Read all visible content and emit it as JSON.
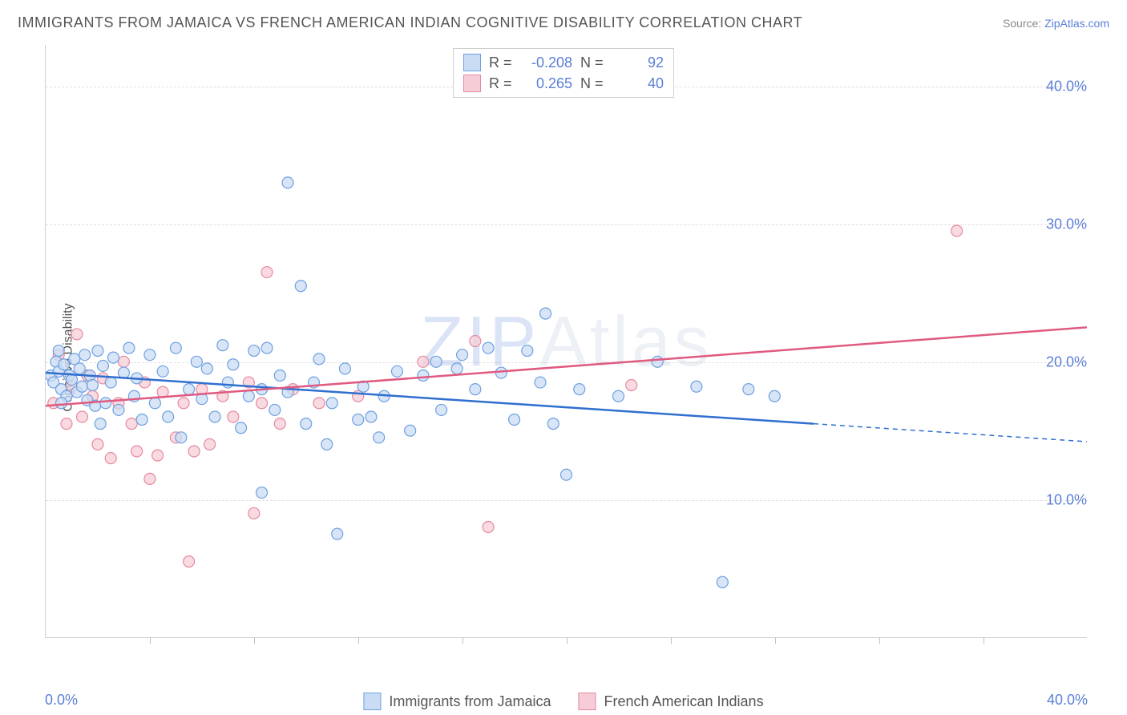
{
  "title": "IMMIGRANTS FROM JAMAICA VS FRENCH AMERICAN INDIAN COGNITIVE DISABILITY CORRELATION CHART",
  "source_prefix": "Source: ",
  "source_link": "ZipAtlas.com",
  "ylabel": "Cognitive Disability",
  "watermark_prefix": "ZIP",
  "watermark_rest": "Atlas",
  "chart": {
    "type": "scatter",
    "xlim": [
      0,
      40
    ],
    "ylim": [
      0,
      43
    ],
    "xtick_labels": {
      "0": "0.0%",
      "40": "40.0%"
    },
    "xticks_minor": [
      4,
      8,
      12,
      16,
      20,
      24,
      28,
      32,
      36
    ],
    "yticks": [
      10,
      20,
      30,
      40
    ],
    "ytick_labels": {
      "10": "10.0%",
      "20": "20.0%",
      "30": "30.0%",
      "40": "40.0%"
    },
    "background_color": "#ffffff",
    "grid_color": "#e0e0e0",
    "axis_color": "#d0d0d0",
    "marker_radius": 7,
    "marker_stroke_width": 1.2,
    "trend_line_width": 2.5,
    "series": [
      {
        "name": "Immigrants from Jamaica",
        "fill": "#c9dcf4",
        "stroke": "#6fa0e0",
        "fill_opacity": 0.75,
        "R": "-0.208",
        "N": "92",
        "trend": {
          "color": "#2f6fd0",
          "x1": 0,
          "y1": 19.2,
          "x2": 29.5,
          "y2": 15.5,
          "dash_from_x": 29.5,
          "x3": 40,
          "y3": 14.2
        },
        "points": [
          [
            0.2,
            19.0
          ],
          [
            0.3,
            18.5
          ],
          [
            0.4,
            20.0
          ],
          [
            0.5,
            19.3
          ],
          [
            0.6,
            18.0
          ],
          [
            0.7,
            19.8
          ],
          [
            0.8,
            17.5
          ],
          [
            0.9,
            19.0
          ],
          [
            0.5,
            20.8
          ],
          [
            0.6,
            17.0
          ],
          [
            1.0,
            18.7
          ],
          [
            1.1,
            20.2
          ],
          [
            1.2,
            17.8
          ],
          [
            1.3,
            19.5
          ],
          [
            1.4,
            18.2
          ],
          [
            1.5,
            20.5
          ],
          [
            1.6,
            17.2
          ],
          [
            1.7,
            19.0
          ],
          [
            1.8,
            18.3
          ],
          [
            1.9,
            16.8
          ],
          [
            2.0,
            20.8
          ],
          [
            2.1,
            15.5
          ],
          [
            2.2,
            19.7
          ],
          [
            2.3,
            17.0
          ],
          [
            2.5,
            18.5
          ],
          [
            2.6,
            20.3
          ],
          [
            2.8,
            16.5
          ],
          [
            3.0,
            19.2
          ],
          [
            3.2,
            21.0
          ],
          [
            3.4,
            17.5
          ],
          [
            3.5,
            18.8
          ],
          [
            3.7,
            15.8
          ],
          [
            4.0,
            20.5
          ],
          [
            4.2,
            17.0
          ],
          [
            4.5,
            19.3
          ],
          [
            4.7,
            16.0
          ],
          [
            5.0,
            21.0
          ],
          [
            5.2,
            14.5
          ],
          [
            5.5,
            18.0
          ],
          [
            5.8,
            20.0
          ],
          [
            6.0,
            17.3
          ],
          [
            6.2,
            19.5
          ],
          [
            6.5,
            16.0
          ],
          [
            6.8,
            21.2
          ],
          [
            7.0,
            18.5
          ],
          [
            7.2,
            19.8
          ],
          [
            7.5,
            15.2
          ],
          [
            7.8,
            17.5
          ],
          [
            8.0,
            20.8
          ],
          [
            8.3,
            18.0
          ],
          [
            8.3,
            10.5
          ],
          [
            8.5,
            21.0
          ],
          [
            8.8,
            16.5
          ],
          [
            9.0,
            19.0
          ],
          [
            9.3,
            17.8
          ],
          [
            9.3,
            33.0
          ],
          [
            9.8,
            25.5
          ],
          [
            10.0,
            15.5
          ],
          [
            10.3,
            18.5
          ],
          [
            10.5,
            20.2
          ],
          [
            10.8,
            14.0
          ],
          [
            11.0,
            17.0
          ],
          [
            11.2,
            7.5
          ],
          [
            11.5,
            19.5
          ],
          [
            12.0,
            15.8
          ],
          [
            12.2,
            18.2
          ],
          [
            12.5,
            16.0
          ],
          [
            12.8,
            14.5
          ],
          [
            13.0,
            17.5
          ],
          [
            13.5,
            19.3
          ],
          [
            14.0,
            15.0
          ],
          [
            14.5,
            19.0
          ],
          [
            15.0,
            20.0
          ],
          [
            15.2,
            16.5
          ],
          [
            15.8,
            19.5
          ],
          [
            16.0,
            20.5
          ],
          [
            16.5,
            18.0
          ],
          [
            17.0,
            21.0
          ],
          [
            17.5,
            19.2
          ],
          [
            18.0,
            15.8
          ],
          [
            18.5,
            20.8
          ],
          [
            19.0,
            18.5
          ],
          [
            19.2,
            23.5
          ],
          [
            19.5,
            15.5
          ],
          [
            20.0,
            11.8
          ],
          [
            20.5,
            18.0
          ],
          [
            22.0,
            17.5
          ],
          [
            23.5,
            20.0
          ],
          [
            25.0,
            18.2
          ],
          [
            26.0,
            4.0
          ],
          [
            27.0,
            18.0
          ],
          [
            28.0,
            17.5
          ]
        ]
      },
      {
        "name": "French American Indians",
        "fill": "#f6cdd6",
        "stroke": "#e68aa0",
        "fill_opacity": 0.75,
        "R": "0.265",
        "N": "40",
        "trend": {
          "color": "#e05a80",
          "x1": 0,
          "y1": 16.8,
          "x2": 40,
          "y2": 22.5
        },
        "points": [
          [
            0.3,
            17.0
          ],
          [
            0.5,
            20.5
          ],
          [
            0.8,
            15.5
          ],
          [
            1.0,
            18.2
          ],
          [
            1.2,
            22.0
          ],
          [
            1.4,
            16.0
          ],
          [
            1.6,
            19.0
          ],
          [
            1.8,
            17.5
          ],
          [
            2.0,
            14.0
          ],
          [
            2.2,
            18.8
          ],
          [
            2.5,
            13.0
          ],
          [
            2.8,
            17.0
          ],
          [
            3.0,
            20.0
          ],
          [
            3.3,
            15.5
          ],
          [
            3.5,
            13.5
          ],
          [
            3.8,
            18.5
          ],
          [
            4.0,
            11.5
          ],
          [
            4.3,
            13.2
          ],
          [
            4.5,
            17.8
          ],
          [
            5.0,
            14.5
          ],
          [
            5.3,
            17.0
          ],
          [
            5.5,
            5.5
          ],
          [
            5.7,
            13.5
          ],
          [
            6.0,
            18.0
          ],
          [
            6.3,
            14.0
          ],
          [
            6.8,
            17.5
          ],
          [
            7.2,
            16.0
          ],
          [
            7.8,
            18.5
          ],
          [
            8.0,
            9.0
          ],
          [
            8.3,
            17.0
          ],
          [
            8.5,
            26.5
          ],
          [
            9.0,
            15.5
          ],
          [
            9.5,
            18.0
          ],
          [
            10.5,
            17.0
          ],
          [
            12.0,
            17.5
          ],
          [
            14.5,
            20.0
          ],
          [
            16.5,
            21.5
          ],
          [
            17.0,
            8.0
          ],
          [
            22.5,
            18.3
          ],
          [
            35.0,
            29.5
          ]
        ]
      }
    ]
  },
  "legend_bottom": [
    "Immigrants from Jamaica",
    "French American Indians"
  ]
}
